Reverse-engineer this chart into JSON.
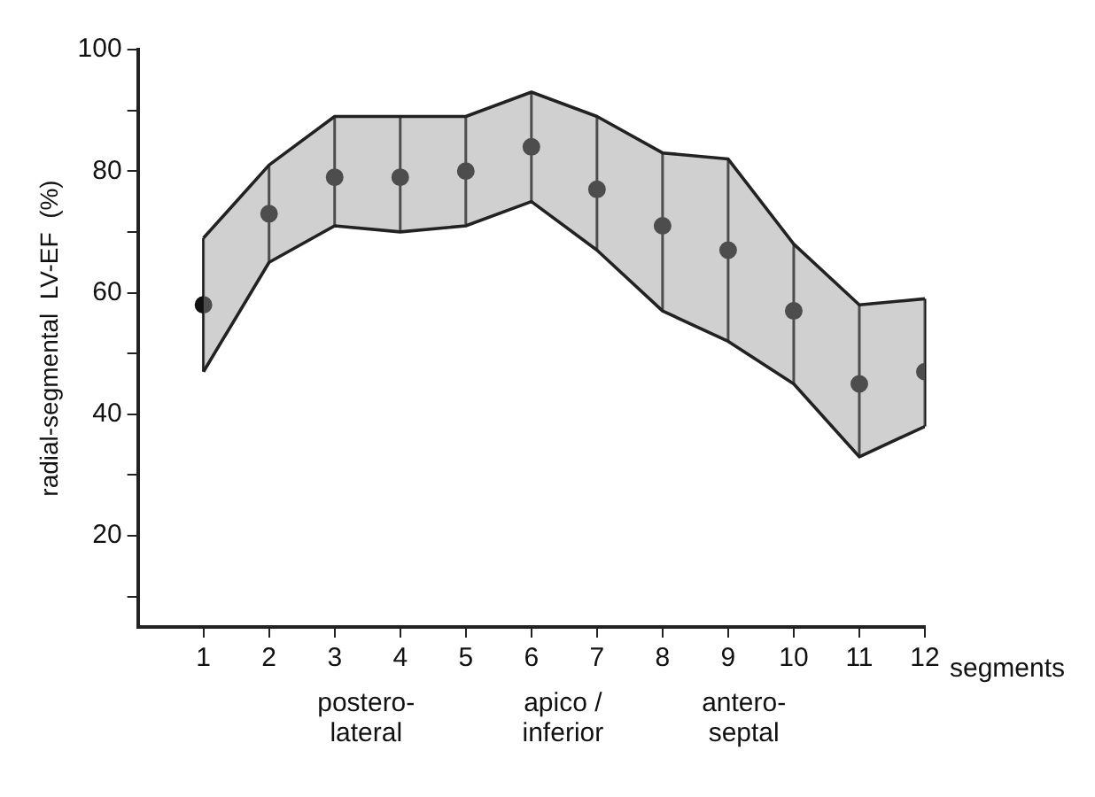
{
  "chart_data": {
    "type": "scatter",
    "xlabel": "segments",
    "ylabel": "radial-segmental  LV-EF  (%)",
    "x": [
      1,
      2,
      3,
      4,
      5,
      6,
      7,
      8,
      9,
      10,
      11,
      12
    ],
    "xlim": [
      0,
      12
    ],
    "xticks": [
      1,
      2,
      3,
      4,
      5,
      6,
      7,
      8,
      9,
      10,
      11,
      12
    ],
    "ylim": [
      5,
      100
    ],
    "yticks": [
      {
        "value": 10,
        "label": null
      },
      20,
      {
        "value": 30,
        "label": null
      },
      40,
      {
        "value": 50,
        "label": null
      },
      60,
      {
        "value": 70,
        "label": null
      },
      80,
      {
        "value": 90,
        "label": null
      },
      100
    ],
    "grid": false,
    "legend": false,
    "marker": "circle",
    "series": [
      {
        "type": "line",
        "marker": "none",
        "color": "#222222",
        "values": [
          69,
          81,
          89,
          89,
          89,
          93,
          89,
          83,
          82,
          68,
          58,
          59
        ]
      },
      {
        "type": "line",
        "marker": "none",
        "color": "#222222",
        "values": [
          47,
          65,
          71,
          70,
          71,
          75,
          67,
          57,
          52,
          45,
          33,
          38
        ]
      },
      {
        "color": "#111111",
        "values": [
          58,
          73,
          79,
          79,
          80,
          84,
          77,
          71,
          67,
          57,
          45,
          47
        ],
        "upper": [
          69,
          81,
          89,
          89,
          89,
          93,
          89,
          83,
          82,
          68,
          58,
          59
        ],
        "lower": [
          47,
          65,
          71,
          70,
          71,
          75,
          67,
          57,
          52,
          45,
          33,
          38
        ],
        "errors": [
          [
            47,
            69
          ],
          [
            65,
            81
          ],
          [
            71,
            89
          ],
          [
            70,
            89
          ],
          [
            71,
            89
          ],
          [
            75,
            93
          ],
          [
            67,
            89
          ],
          [
            57,
            83
          ],
          [
            52,
            82
          ],
          [
            45,
            68
          ],
          [
            33,
            58
          ],
          [
            38,
            59
          ]
        ]
      }
    ],
    "annotations": [
      "postero-\nlateral",
      "apico /\ninferior",
      "antero-\nseptal"
    ]
  }
}
